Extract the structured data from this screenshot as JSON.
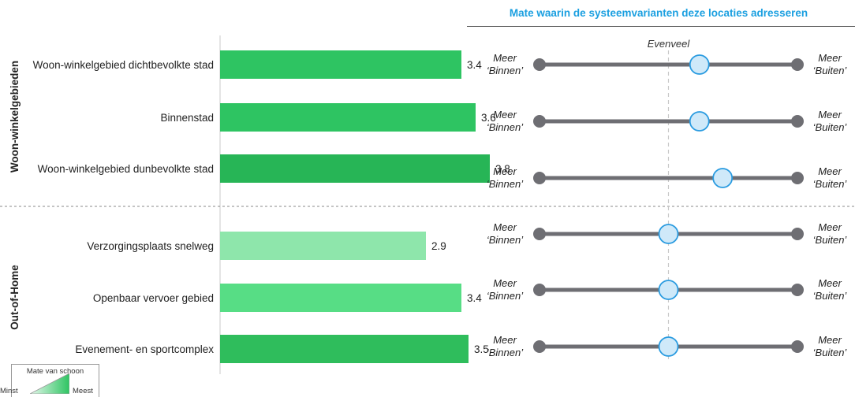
{
  "chart_data": {
    "type": "bar",
    "title": "Mate waarin de systeemvarianten deze locaties adresseren",
    "groups": [
      {
        "name": "Woon-winkelgebieden",
        "start": 0,
        "end": 2
      },
      {
        "name": "Out-of-Home",
        "start": 3,
        "end": 5
      }
    ],
    "categories": [
      "Woon-winkelgebied dichtbevolkte stad",
      "Binnenstad",
      "Woon-winkelgebied dunbevolkte stad",
      "Verzorgingsplaats snelweg",
      "Openbaar vervoer gebied",
      "Evenement- en sportcomplex"
    ],
    "values": [
      3.4,
      3.6,
      3.8,
      2.9,
      3.4,
      3.5
    ],
    "value_labels": [
      "3.4",
      "3.6",
      "3.8",
      "2.9",
      "3.4",
      "3.5"
    ],
    "bar_colors": [
      "#2ec462",
      "#2ec462",
      "#27b556",
      "#8ee6ab",
      "#57dd85",
      "#2fbd5c"
    ],
    "slider": {
      "center_label": "Evenveel",
      "left_label": [
        "Meer",
        "‘Binnen’"
      ],
      "right_label": [
        "Meer",
        "‘Buiten’"
      ],
      "positions": [
        0.62,
        0.62,
        0.71,
        0.5,
        0.5,
        0.5
      ],
      "line_color": "#6e6e73",
      "marker_color": "#cfe9f9",
      "marker_stroke": "#2a9be0"
    },
    "legend": {
      "title": "Mate van schoon",
      "min_label": "Minst",
      "max_label": "Meest"
    }
  }
}
